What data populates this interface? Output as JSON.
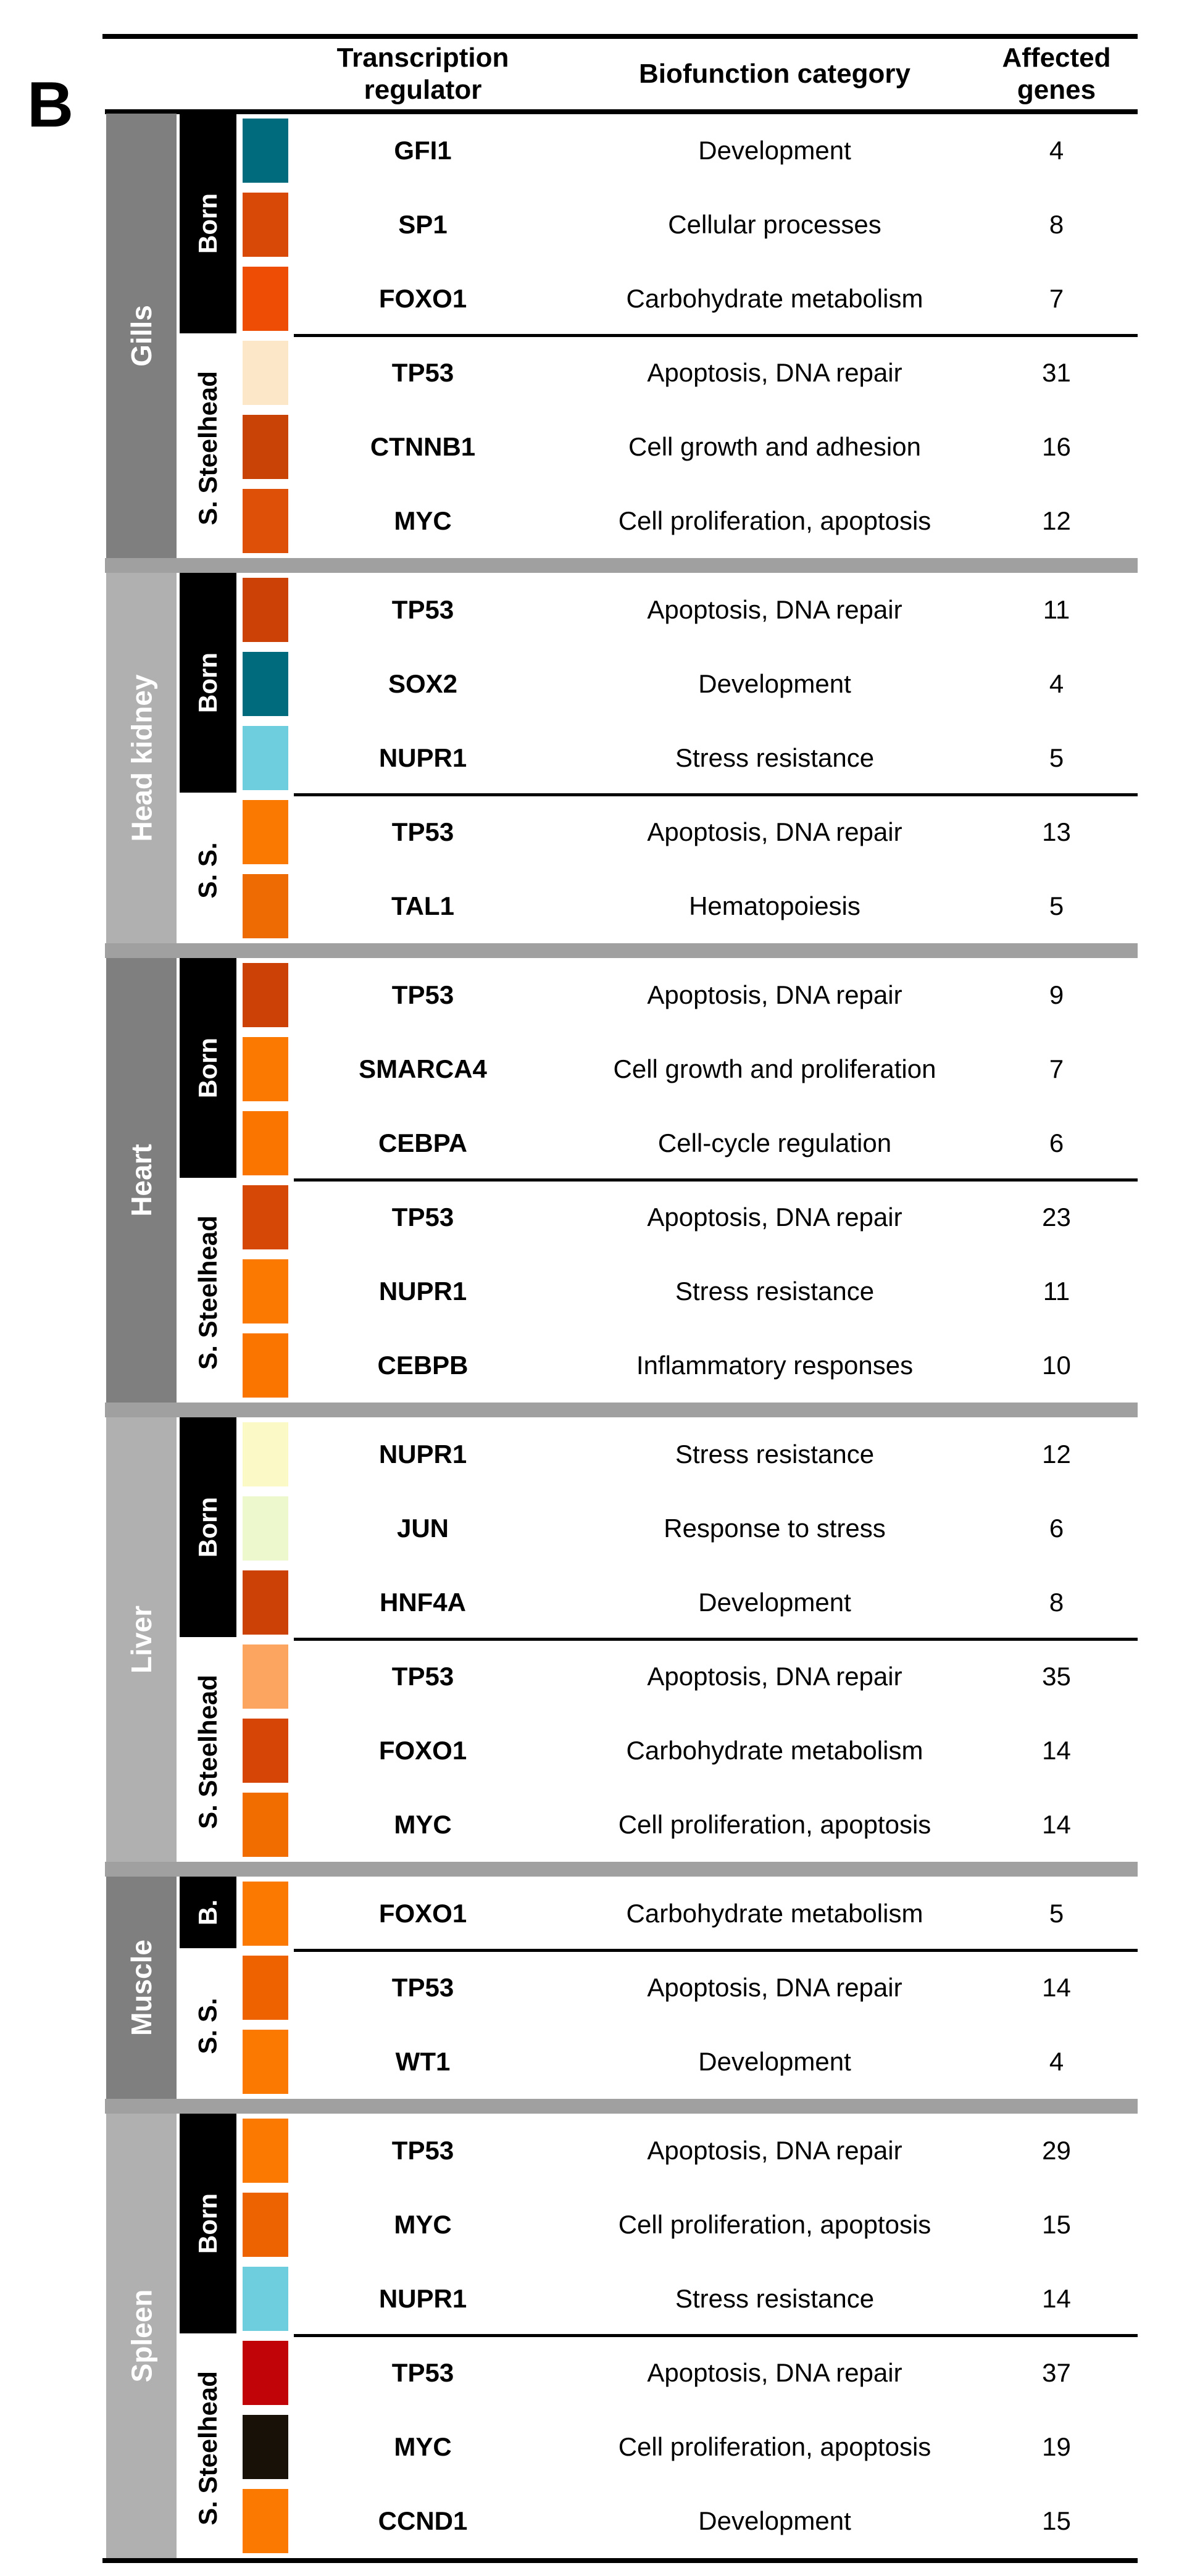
{
  "panel_label": "B",
  "header": {
    "transcription": "Transcription regulator",
    "biofunction": "Biofunction category",
    "affected": "Affected genes"
  },
  "styles": {
    "separator_gray": "#A0A0A0",
    "born_bar_black": "#000000",
    "dark_tissue_gray": "#7F7F7F",
    "light_tissue_gray": "#B0B0B0",
    "line_black": "#000000"
  },
  "tissues": [
    {
      "name": "Gills",
      "bar_color": "#7F7F7F",
      "groups": [
        {
          "label": "Born",
          "style": "dark",
          "rows": [
            {
              "swatch": "#006B7D",
              "regulator": "GFI1",
              "biofunction": "Development",
              "genes": "4"
            },
            {
              "swatch": "#D84907",
              "regulator": "SP1",
              "biofunction": "Cellular processes",
              "genes": "8"
            },
            {
              "swatch": "#EE4D05",
              "regulator": "FOXO1",
              "biofunction": "Carbohydrate metabolism",
              "genes": "7"
            }
          ]
        },
        {
          "label": "S. Steelhead",
          "style": "light",
          "rows": [
            {
              "swatch": "#FCE8C8",
              "regulator": "TP53",
              "biofunction": "Apoptosis, DNA repair",
              "genes": "31"
            },
            {
              "swatch": "#C94306",
              "regulator": "CTNNB1",
              "biofunction": "Cell growth and adhesion",
              "genes": "16"
            },
            {
              "swatch": "#DE5007",
              "regulator": "MYC",
              "biofunction": "Cell proliferation, apoptosis",
              "genes": "12"
            }
          ]
        }
      ]
    },
    {
      "name": "Head kidney",
      "bar_color": "#B0B0B0",
      "groups": [
        {
          "label": "Born",
          "style": "dark",
          "rows": [
            {
              "swatch": "#CC4105",
              "regulator": "TP53",
              "biofunction": "Apoptosis, DNA repair",
              "genes": "11"
            },
            {
              "swatch": "#006B7D",
              "regulator": "SOX2",
              "biofunction": "Development",
              "genes": "4"
            },
            {
              "swatch": "#6FCEDE",
              "regulator": "NUPR1",
              "biofunction": "Stress resistance",
              "genes": "5"
            }
          ]
        },
        {
          "label": "S. S.",
          "style": "light",
          "rows": [
            {
              "swatch": "#FA7A01",
              "regulator": "TP53",
              "biofunction": "Apoptosis, DNA repair",
              "genes": "13"
            },
            {
              "swatch": "#EE6B03",
              "regulator": "TAL1",
              "biofunction": "Hematopoiesis",
              "genes": "5"
            }
          ]
        }
      ]
    },
    {
      "name": "Heart",
      "bar_color": "#7F7F7F",
      "groups": [
        {
          "label": "Born",
          "style": "dark",
          "rows": [
            {
              "swatch": "#CC4105",
              "regulator": "TP53",
              "biofunction": "Apoptosis, DNA repair",
              "genes": "9"
            },
            {
              "swatch": "#FB7900",
              "regulator": "SMARCA4",
              "biofunction": "Cell growth and proliferation",
              "genes": "7"
            },
            {
              "swatch": "#F97500",
              "regulator": "CEBPA",
              "biofunction": "Cell-cycle regulation",
              "genes": "6"
            }
          ]
        },
        {
          "label": "S. Steelhead",
          "style": "light",
          "rows": [
            {
              "swatch": "#D54805",
              "regulator": "TP53",
              "biofunction": "Apoptosis, DNA repair",
              "genes": "23"
            },
            {
              "swatch": "#FB7900",
              "regulator": "NUPR1",
              "biofunction": "Stress resistance",
              "genes": "11"
            },
            {
              "swatch": "#F97500",
              "regulator": "CEBPB",
              "biofunction": "Inflammatory responses",
              "genes": "10"
            }
          ]
        }
      ]
    },
    {
      "name": "Liver",
      "bar_color": "#B0B0B0",
      "groups": [
        {
          "label": "Born",
          "style": "dark",
          "rows": [
            {
              "swatch": "#FBF9C5",
              "regulator": "NUPR1",
              "biofunction": "Stress resistance",
              "genes": "12"
            },
            {
              "swatch": "#EDF8CC",
              "regulator": "JUN",
              "biofunction": "Response to stress",
              "genes": "6"
            },
            {
              "swatch": "#CC4105",
              "regulator": "HNF4A",
              "biofunction": "Development",
              "genes": "8"
            }
          ]
        },
        {
          "label": "S. Steelhead",
          "style": "light",
          "rows": [
            {
              "swatch": "#FCA561",
              "regulator": "TP53",
              "biofunction": "Apoptosis, DNA repair",
              "genes": "35"
            },
            {
              "swatch": "#D64505",
              "regulator": "FOXO1",
              "biofunction": "Carbohydrate metabolism",
              "genes": "14"
            },
            {
              "swatch": "#F26D00",
              "regulator": "MYC",
              "biofunction": "Cell proliferation, apoptosis",
              "genes": "14"
            }
          ]
        }
      ]
    },
    {
      "name": "Muscle",
      "bar_color": "#7F7F7F",
      "groups": [
        {
          "label": "B.",
          "style": "dark",
          "rows": [
            {
              "swatch": "#FB7900",
              "regulator": "FOXO1",
              "biofunction": "Carbohydrate metabolism",
              "genes": "5"
            }
          ]
        },
        {
          "label": "S. S.",
          "style": "light",
          "rows": [
            {
              "swatch": "#EE6300",
              "regulator": "TP53",
              "biofunction": "Apoptosis, DNA repair",
              "genes": "14"
            },
            {
              "swatch": "#FB7900",
              "regulator": "WT1",
              "biofunction": "Development",
              "genes": "4"
            }
          ]
        }
      ]
    },
    {
      "name": "Spleen",
      "bar_color": "#B0B0B0",
      "groups": [
        {
          "label": "Born",
          "style": "dark",
          "rows": [
            {
              "swatch": "#FB7900",
              "regulator": "TP53",
              "biofunction": "Apoptosis, DNA repair",
              "genes": "29"
            },
            {
              "swatch": "#ED6301",
              "regulator": "MYC",
              "biofunction": "Cell proliferation, apoptosis",
              "genes": "15"
            },
            {
              "swatch": "#6FCEDE",
              "regulator": "NUPR1",
              "biofunction": "Stress resistance",
              "genes": "14"
            }
          ]
        },
        {
          "label": "S. Steelhead",
          "style": "light",
          "rows": [
            {
              "swatch": "#C00408",
              "regulator": "TP53",
              "biofunction": "Apoptosis, DNA repair",
              "genes": "37"
            },
            {
              "swatch": "#181107",
              "regulator": "MYC",
              "biofunction": "Cell proliferation, apoptosis",
              "genes": "19"
            },
            {
              "swatch": "#FB7900",
              "regulator": "CCND1",
              "biofunction": "Development",
              "genes": "15"
            }
          ]
        }
      ]
    }
  ]
}
